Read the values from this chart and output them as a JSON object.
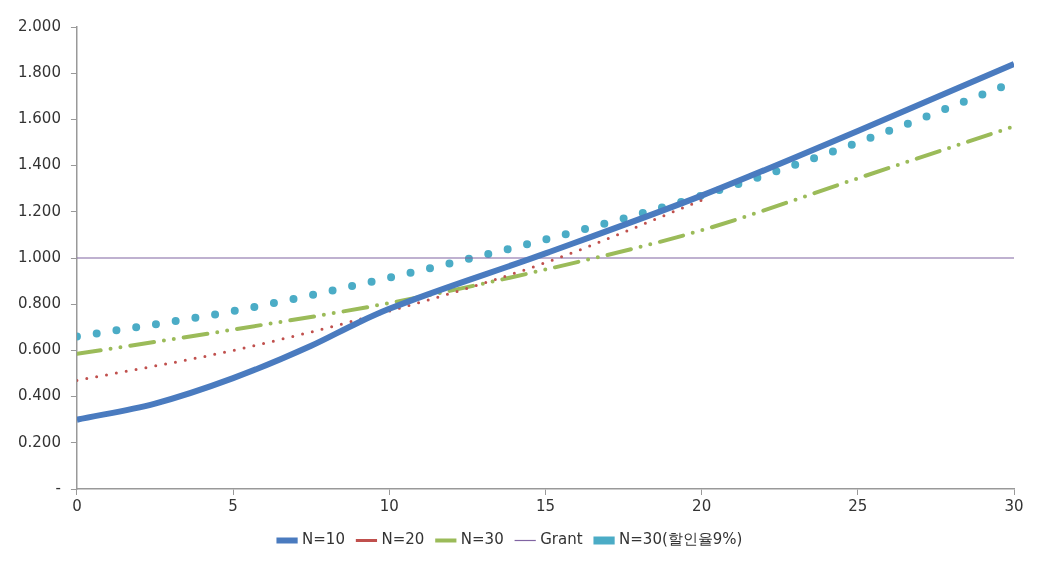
{
  "chart_data": {
    "type": "line",
    "xlim": [
      0,
      30
    ],
    "xticks": [
      0,
      5,
      10,
      15,
      20,
      25,
      30
    ],
    "ylim": [
      0,
      2
    ],
    "yticks": [
      {
        "value": 0,
        "label": "-"
      },
      {
        "value": 0.2,
        "label": "0.200"
      },
      {
        "value": 0.4,
        "label": "0.400"
      },
      {
        "value": 0.6,
        "label": "0.600"
      },
      {
        "value": 0.8,
        "label": "0.800"
      },
      {
        "value": 1,
        "label": "1.000"
      },
      {
        "value": 1.2,
        "label": "1.200"
      },
      {
        "value": 1.4,
        "label": "1.400"
      },
      {
        "value": 1.6,
        "label": "1.600"
      },
      {
        "value": 1.8,
        "label": "1.800"
      },
      {
        "value": 2,
        "label": "2.000"
      }
    ],
    "grid": false,
    "legend": "bottom",
    "marker": "none",
    "series": [
      {
        "name": "N=10",
        "color": "#4a7bbf",
        "line_style": "solid",
        "x": [
          0,
          2.5,
          5,
          7.5,
          9,
          10,
          15,
          20,
          25,
          30
        ],
        "values": [
          0.3,
          0.37,
          0.48,
          0.62,
          0.72,
          0.78,
          1.02,
          1.27,
          1.55,
          1.84
        ]
      },
      {
        "name": "N=20",
        "color": "#c0504d",
        "line_style": "dotted",
        "x": [
          0,
          5,
          10,
          15,
          20
        ],
        "values": [
          0.47,
          0.6,
          0.77,
          0.98,
          1.25
        ]
      },
      {
        "name": "N=30",
        "color": "#9bbb59",
        "line_style": "dashed",
        "x": [
          0,
          5,
          10,
          15,
          20,
          25,
          30
        ],
        "values": [
          0.585,
          0.69,
          0.805,
          0.95,
          1.12,
          1.345,
          1.57
        ]
      },
      {
        "name": "Grant",
        "color": "#8064a2",
        "line_style": "solid",
        "x": [
          0,
          30
        ],
        "values": [
          1,
          1
        ]
      },
      {
        "name": "N=30(할인율9%)",
        "color": "#4bacc6",
        "line_style": "dotted",
        "x": [
          0,
          5,
          10,
          15,
          20,
          25,
          29.6
        ],
        "values": [
          0.66,
          0.77,
          0.915,
          1.08,
          1.27,
          1.5,
          1.74
        ]
      }
    ]
  }
}
